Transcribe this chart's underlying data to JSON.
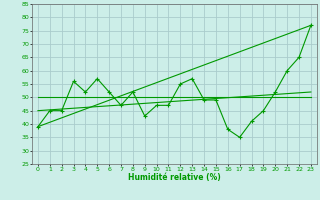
{
  "xlabel": "Humidité relative (%)",
  "background_color": "#cceee8",
  "grid_color": "#aacccc",
  "line_color": "#009900",
  "x_values": [
    0,
    1,
    2,
    3,
    4,
    5,
    6,
    7,
    8,
    9,
    10,
    11,
    12,
    13,
    14,
    15,
    16,
    17,
    18,
    19,
    20,
    21,
    22,
    23
  ],
  "main_y": [
    39,
    45,
    45,
    56,
    52,
    57,
    52,
    47,
    52,
    43,
    47,
    47,
    55,
    57,
    49,
    49,
    38,
    35,
    41,
    45,
    52,
    60,
    65,
    77
  ],
  "trend1_y": [
    39,
    77
  ],
  "trend2_y": [
    50,
    50
  ],
  "trend3_y": [
    45,
    52
  ],
  "ylim": [
    25,
    85
  ],
  "xlim": [
    -0.5,
    23.5
  ],
  "yticks": [
    25,
    30,
    35,
    40,
    45,
    50,
    55,
    60,
    65,
    70,
    75,
    80,
    85
  ],
  "xticks": [
    0,
    1,
    2,
    3,
    4,
    5,
    6,
    7,
    8,
    9,
    10,
    11,
    12,
    13,
    14,
    15,
    16,
    17,
    18,
    19,
    20,
    21,
    22,
    23
  ],
  "tick_fontsize": 4.5,
  "xlabel_fontsize": 5.5
}
